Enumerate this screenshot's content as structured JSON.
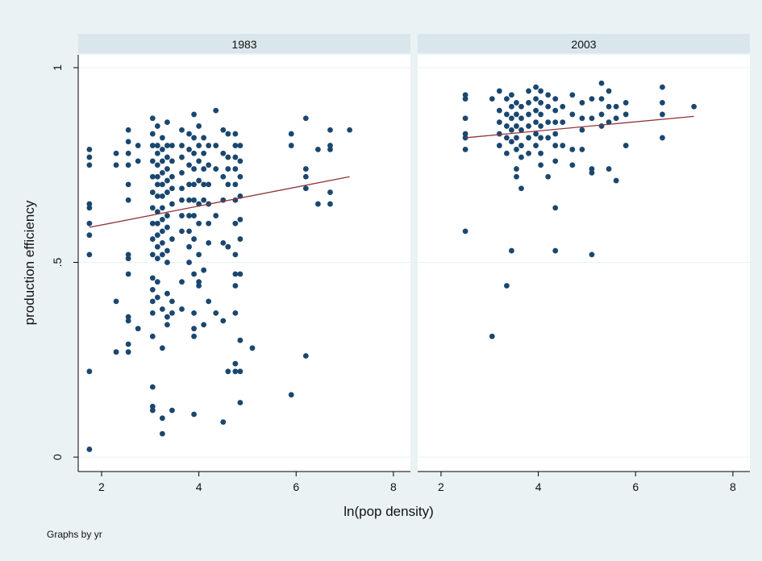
{
  "chart_data": {
    "type": "scatter",
    "ylabel": "production efficiency",
    "xlabel": "ln(pop density)",
    "note": "Graphs by yr",
    "xlim": [
      1.52,
      8.35
    ],
    "xticks": [
      2,
      4,
      6,
      8
    ],
    "ylim": [
      -0.037,
      1.033
    ],
    "yticks": [
      0,
      {
        "value": 0.5,
        "label": ".5"
      },
      1
    ],
    "grid": true,
    "color": "#1a476f",
    "fit_color": "#90353b",
    "panels": [
      {
        "title": "1983",
        "groups": [
          {
            "x": 1.75,
            "values": [
              0.79,
              0.77,
              0.75,
              0.65,
              0.64,
              0.6,
              0.57,
              0.52,
              0.22,
              0.02
            ]
          },
          {
            "x": 2.3,
            "values": [
              0.78,
              0.75,
              0.4,
              0.27
            ]
          },
          {
            "x": 2.55,
            "values": [
              0.84,
              0.81,
              0.78,
              0.75,
              0.7,
              0.66,
              0.52,
              0.51,
              0.47,
              0.36,
              0.35,
              0.29,
              0.27
            ]
          },
          {
            "x": 2.75,
            "values": [
              0.8,
              0.76,
              0.33
            ]
          },
          {
            "x": 3.05,
            "values": [
              0.87,
              0.83,
              0.8,
              0.76,
              0.72,
              0.68,
              0.64,
              0.6,
              0.56,
              0.52,
              0.46,
              0.43,
              0.4,
              0.37,
              0.31,
              0.18,
              0.13,
              0.12
            ]
          },
          {
            "x": 3.15,
            "values": [
              0.85,
              0.8,
              0.78,
              0.75,
              0.72,
              0.7,
              0.67,
              0.63,
              0.6,
              0.57,
              0.54,
              0.51,
              0.45,
              0.41
            ]
          },
          {
            "x": 3.25,
            "values": [
              0.82,
              0.79,
              0.76,
              0.73,
              0.7,
              0.67,
              0.64,
              0.61,
              0.58,
              0.55,
              0.52,
              0.38,
              0.28,
              0.1,
              0.06
            ]
          },
          {
            "x": 3.35,
            "values": [
              0.86,
              0.8,
              0.77,
              0.74,
              0.71,
              0.68,
              0.62,
              0.59,
              0.53,
              0.5,
              0.42,
              0.36,
              0.34
            ]
          },
          {
            "x": 3.45,
            "values": [
              0.8,
              0.76,
              0.72,
              0.69,
              0.65,
              0.56,
              0.4,
              0.37,
              0.12
            ]
          },
          {
            "x": 3.65,
            "values": [
              0.84,
              0.8,
              0.77,
              0.73,
              0.69,
              0.66,
              0.62,
              0.58,
              0.45,
              0.38
            ]
          },
          {
            "x": 3.8,
            "values": [
              0.83,
              0.79,
              0.75,
              0.7,
              0.66,
              0.62,
              0.58,
              0.54,
              0.5
            ]
          },
          {
            "x": 3.9,
            "values": [
              0.88,
              0.82,
              0.78,
              0.74,
              0.7,
              0.66,
              0.62,
              0.56,
              0.47,
              0.37,
              0.33,
              0.31,
              0.11
            ]
          },
          {
            "x": 4.0,
            "values": [
              0.85,
              0.8,
              0.76,
              0.71,
              0.65,
              0.6,
              0.52,
              0.45,
              0.44
            ]
          },
          {
            "x": 4.1,
            "values": [
              0.82,
              0.78,
              0.74,
              0.7,
              0.66,
              0.48,
              0.34
            ]
          },
          {
            "x": 4.2,
            "values": [
              0.8,
              0.75,
              0.7,
              0.65,
              0.6,
              0.55,
              0.4
            ]
          },
          {
            "x": 4.35,
            "values": [
              0.89,
              0.8,
              0.74,
              0.62,
              0.37
            ]
          },
          {
            "x": 4.5,
            "values": [
              0.84,
              0.78,
              0.72,
              0.66,
              0.55,
              0.35,
              0.09
            ]
          },
          {
            "x": 4.6,
            "values": [
              0.83,
              0.77,
              0.74,
              0.7,
              0.54,
              0.22
            ]
          },
          {
            "x": 4.75,
            "values": [
              0.83,
              0.8,
              0.77,
              0.74,
              0.7,
              0.66,
              0.6,
              0.52,
              0.47,
              0.44,
              0.37,
              0.24,
              0.22
            ]
          },
          {
            "x": 4.85,
            "values": [
              0.8,
              0.76,
              0.72,
              0.67,
              0.61,
              0.56,
              0.47,
              0.3,
              0.22,
              0.14
            ]
          },
          {
            "x": 5.1,
            "values": [
              0.28
            ]
          },
          {
            "x": 5.9,
            "values": [
              0.83,
              0.8,
              0.16
            ]
          },
          {
            "x": 6.2,
            "values": [
              0.87,
              0.74,
              0.72,
              0.69,
              0.26
            ]
          },
          {
            "x": 6.45,
            "values": [
              0.79,
              0.65
            ]
          },
          {
            "x": 6.7,
            "values": [
              0.84,
              0.8,
              0.79,
              0.68,
              0.65
            ]
          },
          {
            "x": 7.1,
            "values": [
              0.84
            ]
          }
        ],
        "fit": {
          "x": [
            1.75,
            7.1
          ],
          "values": [
            0.59,
            0.72
          ]
        }
      },
      {
        "title": "2003",
        "groups": [
          {
            "x": 2.5,
            "values": [
              0.93,
              0.92,
              0.87,
              0.83,
              0.82,
              0.79,
              0.58
            ]
          },
          {
            "x": 3.05,
            "values": [
              0.92,
              0.31
            ]
          },
          {
            "x": 3.2,
            "values": [
              0.94,
              0.89,
              0.86,
              0.83,
              0.8
            ]
          },
          {
            "x": 3.35,
            "values": [
              0.92,
              0.88,
              0.85,
              0.82,
              0.78,
              0.44
            ]
          },
          {
            "x": 3.45,
            "values": [
              0.93,
              0.9,
              0.87,
              0.84,
              0.81,
              0.53
            ]
          },
          {
            "x": 3.55,
            "values": [
              0.91,
              0.88,
              0.85,
              0.82,
              0.79,
              0.74,
              0.72
            ]
          },
          {
            "x": 3.65,
            "values": [
              0.9,
              0.87,
              0.84,
              0.8,
              0.77,
              0.69
            ]
          },
          {
            "x": 3.8,
            "values": [
              0.94,
              0.91,
              0.88,
              0.85,
              0.82,
              0.78
            ]
          },
          {
            "x": 3.95,
            "values": [
              0.95,
              0.92,
              0.89,
              0.86,
              0.83,
              0.8
            ]
          },
          {
            "x": 4.05,
            "values": [
              0.94,
              0.91,
              0.88,
              0.85,
              0.82,
              0.78,
              0.75
            ]
          },
          {
            "x": 4.2,
            "values": [
              0.93,
              0.9,
              0.86,
              0.82,
              0.72
            ]
          },
          {
            "x": 4.35,
            "values": [
              0.92,
              0.89,
              0.86,
              0.83,
              0.8,
              0.76,
              0.64,
              0.53
            ]
          },
          {
            "x": 4.5,
            "values": [
              0.9,
              0.86,
              0.8
            ]
          },
          {
            "x": 4.7,
            "values": [
              0.93,
              0.88,
              0.79,
              0.75
            ]
          },
          {
            "x": 4.9,
            "values": [
              0.91,
              0.87,
              0.84,
              0.79
            ]
          },
          {
            "x": 5.1,
            "values": [
              0.92,
              0.87,
              0.74,
              0.73,
              0.52
            ]
          },
          {
            "x": 5.3,
            "values": [
              0.96,
              0.92,
              0.88,
              0.85
            ]
          },
          {
            "x": 5.45,
            "values": [
              0.94,
              0.9,
              0.86,
              0.74
            ]
          },
          {
            "x": 5.6,
            "values": [
              0.9,
              0.87,
              0.71
            ]
          },
          {
            "x": 5.8,
            "values": [
              0.91,
              0.88,
              0.8
            ]
          },
          {
            "x": 6.55,
            "values": [
              0.95,
              0.91,
              0.88,
              0.82
            ]
          },
          {
            "x": 7.2,
            "values": [
              0.9
            ]
          }
        ],
        "fit": {
          "x": [
            2.5,
            7.2
          ],
          "values": [
            0.82,
            0.875
          ]
        }
      }
    ]
  }
}
